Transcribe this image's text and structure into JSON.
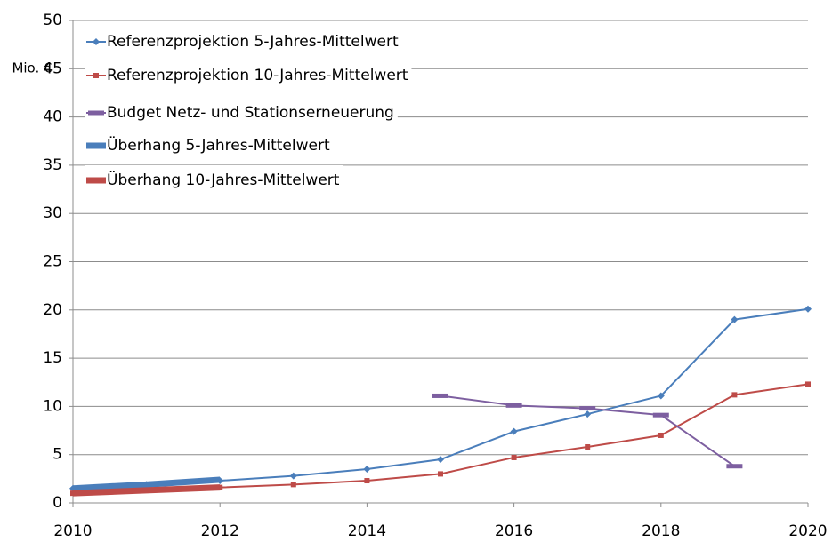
{
  "chart_data": {
    "type": "line",
    "y_label": "Mio. €",
    "x": [
      2010,
      2011,
      2012,
      2013,
      2014,
      2015,
      2016,
      2017,
      2018,
      2019,
      2020
    ],
    "xlim": [
      2010,
      2020
    ],
    "xticks": [
      2010,
      2012,
      2014,
      2016,
      2018,
      2020
    ],
    "ylim": [
      0,
      50
    ],
    "yticks": [
      0,
      5,
      10,
      15,
      20,
      25,
      30,
      35,
      40,
      45,
      50
    ],
    "grid": true,
    "legend": "upper left",
    "series": [
      {
        "name": "Referenzprojektion 5-Jahres-Mittelwert",
        "color": "#4a7ebb",
        "marker": "diamond",
        "line_width": 2,
        "values": [
          1.5,
          1.9,
          2.3,
          2.8,
          3.5,
          4.5,
          7.4,
          9.2,
          11.1,
          19.0,
          20.1
        ]
      },
      {
        "name": "Referenzprojektion 10-Jahres-Mittelwert",
        "color": "#be4b48",
        "marker": "square",
        "line_width": 2,
        "values": [
          1.0,
          1.3,
          1.6,
          1.9,
          2.3,
          3.0,
          4.7,
          5.8,
          7.0,
          11.2,
          12.3
        ]
      },
      {
        "name": "Budget Netz- und Stationserneuerung",
        "color": "#7d5fa0",
        "marker": "dash",
        "line_width": 2,
        "values": [
          null,
          null,
          null,
          null,
          null,
          11.1,
          10.1,
          9.8,
          9.1,
          3.8,
          null
        ]
      },
      {
        "name": "Überhang 5-Jahres-Mittelwert",
        "color": "#4a7ebb",
        "marker": "none",
        "line_width": 7,
        "values": [
          1.5,
          1.9,
          2.4,
          null,
          null,
          null,
          null,
          null,
          null,
          null,
          null
        ]
      },
      {
        "name": "Überhang 10-Jahres-Mittelwert",
        "color": "#be4b48",
        "marker": "none",
        "line_width": 7,
        "values": [
          1.0,
          1.3,
          1.6,
          null,
          null,
          null,
          null,
          null,
          null,
          null,
          null
        ]
      }
    ]
  }
}
